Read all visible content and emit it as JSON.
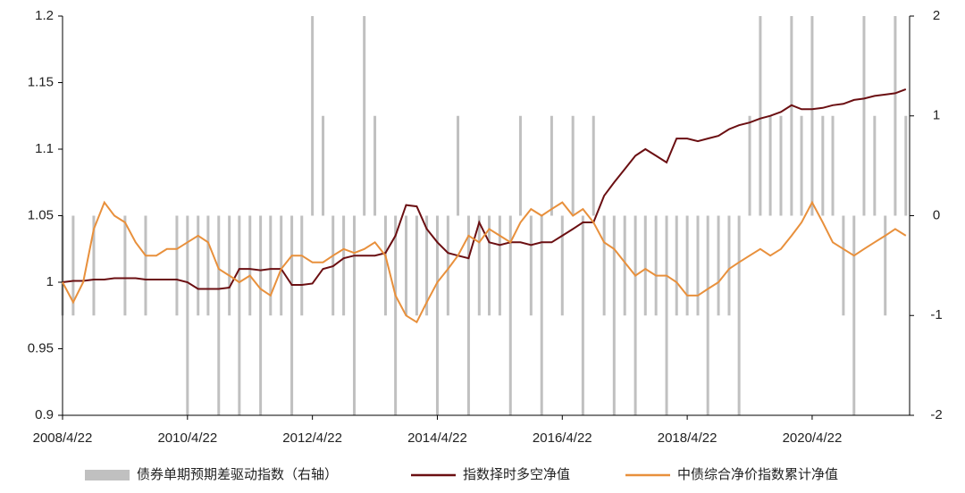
{
  "chart_data": {
    "type": "bar_line_dual_axis",
    "x": [
      2008.3,
      2008.47,
      2008.63,
      2008.8,
      2008.97,
      2009.13,
      2009.3,
      2009.47,
      2009.63,
      2009.8,
      2009.97,
      2010.13,
      2010.3,
      2010.47,
      2010.63,
      2010.8,
      2010.97,
      2011.13,
      2011.3,
      2011.47,
      2011.63,
      2011.8,
      2011.97,
      2012.13,
      2012.3,
      2012.47,
      2012.63,
      2012.8,
      2012.97,
      2013.13,
      2013.3,
      2013.47,
      2013.63,
      2013.8,
      2013.97,
      2014.13,
      2014.3,
      2014.47,
      2014.63,
      2014.8,
      2014.97,
      2015.13,
      2015.3,
      2015.47,
      2015.63,
      2015.8,
      2015.97,
      2016.13,
      2016.3,
      2016.47,
      2016.63,
      2016.8,
      2016.97,
      2017.13,
      2017.3,
      2017.47,
      2017.63,
      2017.8,
      2017.97,
      2018.13,
      2018.3,
      2018.47,
      2018.63,
      2018.8,
      2018.97,
      2019.13,
      2019.3,
      2019.47,
      2019.63,
      2019.8,
      2019.97,
      2020.13,
      2020.3,
      2020.47,
      2020.63,
      2020.8,
      2020.97,
      2021.13,
      2021.3,
      2021.47,
      2021.63,
      2021.8
    ],
    "series": [
      {
        "name": "债券单期预期差驱动指数（右轴）",
        "color": "#c0c0c0",
        "kind": "bar",
        "axis": "y2",
        "values": [
          -1,
          -1,
          0,
          -1,
          0,
          0,
          -1,
          0,
          -1,
          0,
          0,
          -1,
          -2,
          -1,
          -1,
          -2,
          -1,
          -2,
          -1,
          -2,
          -1,
          -1,
          -2,
          -1,
          2,
          1,
          -1,
          -1,
          -2,
          2,
          1,
          -1,
          -2,
          -1,
          -1,
          -1,
          -2,
          -1,
          1,
          -2,
          -1,
          -1,
          -1,
          -2,
          1,
          -1,
          -2,
          1,
          -1,
          1,
          -2,
          1,
          -1,
          -2,
          -1,
          -2,
          -1,
          -1,
          -2,
          -1,
          -1,
          -1,
          -2,
          -1,
          -1,
          -2,
          1,
          2,
          1,
          1,
          2,
          1,
          2,
          1,
          1,
          -1,
          -2,
          2,
          1,
          -1,
          2,
          1
        ]
      },
      {
        "name": "指数择时多空净值",
        "color": "#6b0f12",
        "kind": "line",
        "values": [
          1.0,
          1.001,
          1.001,
          1.002,
          1.002,
          1.003,
          1.003,
          1.003,
          1.002,
          1.002,
          1.002,
          1.002,
          1.0,
          0.995,
          0.995,
          0.995,
          0.996,
          1.01,
          1.01,
          1.009,
          1.01,
          1.01,
          0.998,
          0.998,
          0.999,
          1.01,
          1.012,
          1.018,
          1.02,
          1.02,
          1.02,
          1.022,
          1.035,
          1.058,
          1.057,
          1.04,
          1.03,
          1.022,
          1.02,
          1.018,
          1.045,
          1.03,
          1.028,
          1.03,
          1.03,
          1.028,
          1.03,
          1.03,
          1.035,
          1.04,
          1.045,
          1.045,
          1.065,
          1.075,
          1.085,
          1.095,
          1.1,
          1.095,
          1.09,
          1.108,
          1.108,
          1.106,
          1.108,
          1.11,
          1.115,
          1.118,
          1.12,
          1.123,
          1.125,
          1.128,
          1.133,
          1.13,
          1.13,
          1.131,
          1.133,
          1.134,
          1.137,
          1.138,
          1.14,
          1.141,
          1.142,
          1.145
        ]
      },
      {
        "name": "中债综合净价指数累计净值",
        "color": "#e8903c",
        "kind": "line",
        "values": [
          1.0,
          0.985,
          1.0,
          1.04,
          1.06,
          1.05,
          1.045,
          1.03,
          1.02,
          1.02,
          1.025,
          1.025,
          1.03,
          1.035,
          1.03,
          1.01,
          1.005,
          1.0,
          1.005,
          0.995,
          0.99,
          1.01,
          1.02,
          1.02,
          1.015,
          1.015,
          1.02,
          1.025,
          1.022,
          1.025,
          1.03,
          1.02,
          0.99,
          0.975,
          0.97,
          0.985,
          1.0,
          1.01,
          1.02,
          1.035,
          1.03,
          1.04,
          1.035,
          1.03,
          1.045,
          1.055,
          1.05,
          1.055,
          1.06,
          1.05,
          1.055,
          1.045,
          1.03,
          1.025,
          1.015,
          1.005,
          1.01,
          1.005,
          1.005,
          1.0,
          0.99,
          0.99,
          0.995,
          1.0,
          1.01,
          1.015,
          1.02,
          1.025,
          1.02,
          1.025,
          1.035,
          1.045,
          1.06,
          1.045,
          1.03,
          1.025,
          1.02,
          1.025,
          1.03,
          1.035,
          1.04,
          1.035
        ]
      }
    ],
    "xlim": [
      2008.3,
      2021.86
    ],
    "xticks": [
      {
        "value": 2008.3,
        "label": "2008/4/22"
      },
      {
        "value": 2010.3,
        "label": "2010/4/22"
      },
      {
        "value": 2012.3,
        "label": "2012/4/22"
      },
      {
        "value": 2014.3,
        "label": "2014/4/22"
      },
      {
        "value": 2016.3,
        "label": "2016/4/22"
      },
      {
        "value": 2018.3,
        "label": "2018/4/22"
      },
      {
        "value": 2020.3,
        "label": "2020/4/22"
      }
    ],
    "ylim": [
      0.9,
      1.2
    ],
    "yticks": [
      0.9,
      0.95,
      1,
      1.05,
      1.1,
      1.15,
      1.2
    ],
    "y2lim": [
      -2,
      2
    ],
    "y2ticks": [
      -2,
      -1,
      0,
      1,
      2
    ],
    "legend": "bottom"
  }
}
